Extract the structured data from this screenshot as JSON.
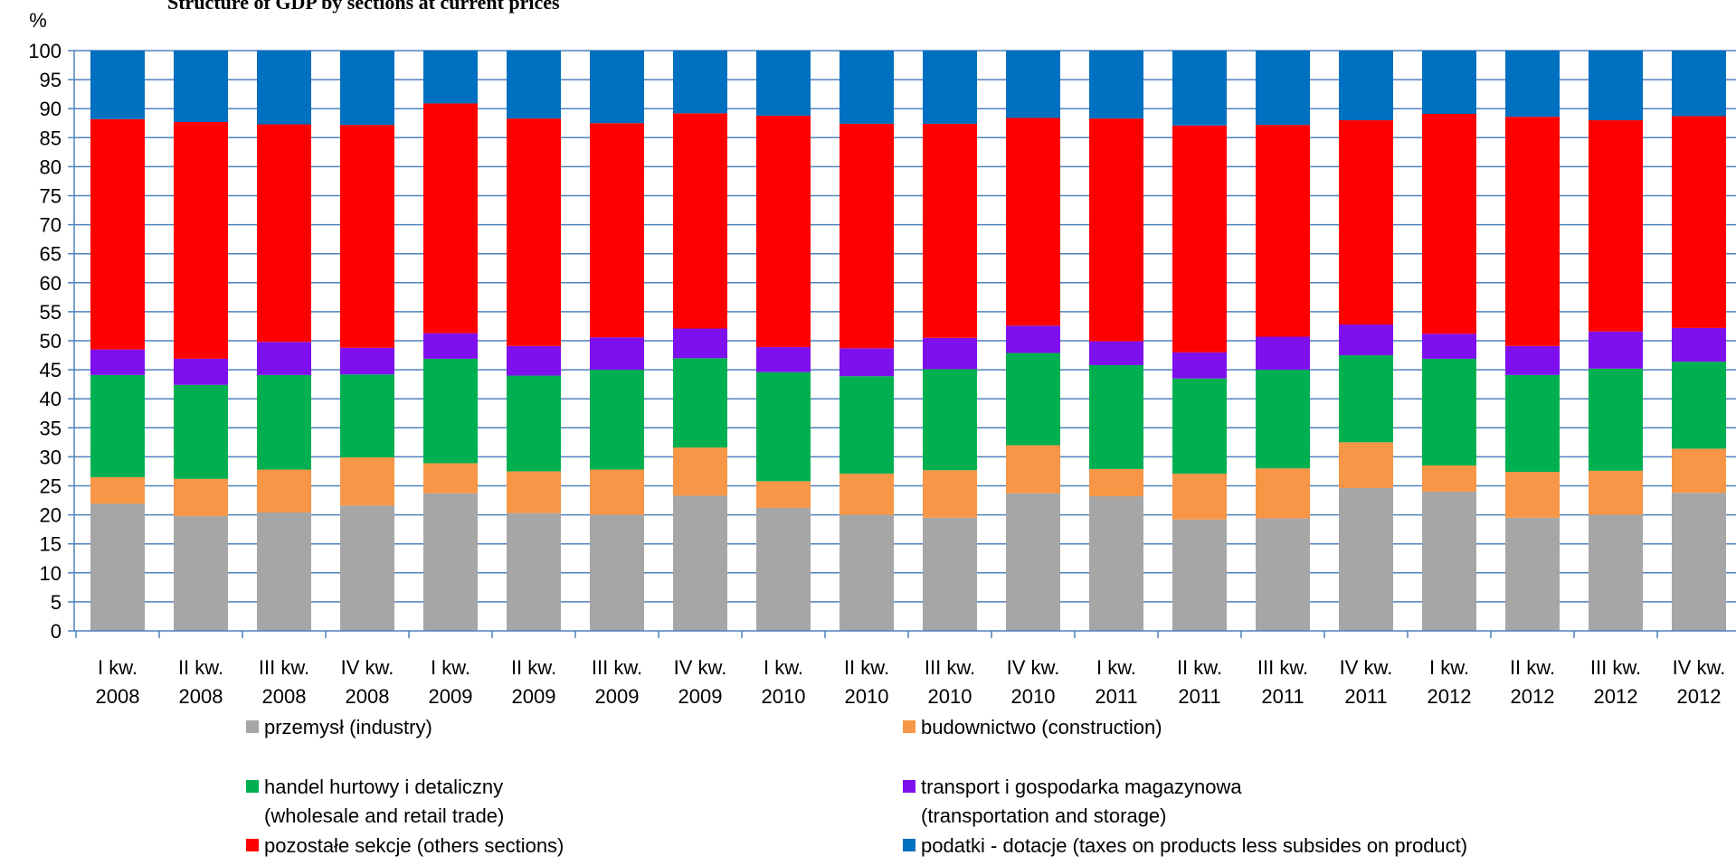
{
  "chart_data": {
    "type": "bar",
    "stacked": true,
    "title": "Structure of GDP by sections at current prices",
    "ylabel": "%",
    "xlabel": "",
    "ylim": [
      0,
      100
    ],
    "yticks": [
      0,
      5,
      10,
      15,
      20,
      25,
      30,
      35,
      40,
      45,
      50,
      55,
      60,
      65,
      70,
      75,
      80,
      85,
      90,
      95,
      100
    ],
    "grid": true,
    "legend_position": "bottom",
    "categories": [
      [
        "I kw.",
        "2008"
      ],
      [
        "II kw.",
        "2008"
      ],
      [
        "III kw.",
        "2008"
      ],
      [
        "IV kw.",
        "2008"
      ],
      [
        "I kw.",
        "2009"
      ],
      [
        "II kw.",
        "2009"
      ],
      [
        "III kw.",
        "2009"
      ],
      [
        "IV kw.",
        "2009"
      ],
      [
        "I kw.",
        "2010"
      ],
      [
        "II kw.",
        "2010"
      ],
      [
        "III kw.",
        "2010"
      ],
      [
        "IV kw.",
        "2010"
      ],
      [
        "I kw.",
        "2011"
      ],
      [
        "II kw.",
        "2011"
      ],
      [
        "III kw.",
        "2011"
      ],
      [
        "IV kw.",
        "2011"
      ],
      [
        "I kw.",
        "2012"
      ],
      [
        "II kw.",
        "2012"
      ],
      [
        "III kw.",
        "2012"
      ],
      [
        "IV kw.",
        "2012"
      ]
    ],
    "series": [
      {
        "name": "przemysł (industry)",
        "legend_lines": [
          "przemysł (industry)"
        ],
        "color": "#a6a6a6",
        "values": [
          21.9,
          19.8,
          20.4,
          21.6,
          23.7,
          20.3,
          20.0,
          23.3,
          21.2,
          20.0,
          19.5,
          23.7,
          23.2,
          19.2,
          19.4,
          24.6,
          24.0,
          19.5,
          20.0,
          23.8
        ]
      },
      {
        "name": "budownictwo (construction)",
        "legend_lines": [
          "budownictwo (construction)"
        ],
        "color": "#f79646",
        "values": [
          4.6,
          6.4,
          7.4,
          8.3,
          5.2,
          7.2,
          7.8,
          8.3,
          4.6,
          7.1,
          8.2,
          8.3,
          4.7,
          7.9,
          8.6,
          7.9,
          4.5,
          7.9,
          7.6,
          7.6
        ]
      },
      {
        "name": "handel hurtowy i detaliczny (wholesale and retail trade)",
        "legend_lines": [
          "handel hurtowy i detaliczny",
          "(wholesale and retail trade)"
        ],
        "color": "#00b050",
        "values": [
          17.6,
          16.2,
          16.3,
          14.3,
          18.0,
          16.5,
          17.2,
          15.4,
          18.8,
          16.8,
          17.4,
          15.9,
          17.9,
          16.4,
          17.0,
          15.0,
          18.4,
          16.7,
          17.6,
          15.0
        ]
      },
      {
        "name": "transport i gospodarka magazynowa (transportation and storage)",
        "legend_lines": [
          "transport i gospodarka magazynowa",
          "(transportation and storage)"
        ],
        "color": "#7f10ee",
        "values": [
          4.4,
          4.5,
          5.7,
          4.6,
          4.4,
          5.1,
          5.6,
          5.1,
          4.3,
          4.8,
          5.4,
          4.7,
          4.1,
          4.5,
          5.7,
          5.3,
          4.3,
          5.0,
          6.4,
          5.8
        ]
      },
      {
        "name": "pozostałe sekcje (others sections)",
        "legend_lines": [
          "pozostałe sekcje (others sections)"
        ],
        "color": "#ff0000",
        "values": [
          39.7,
          40.8,
          37.5,
          38.4,
          39.6,
          39.2,
          36.9,
          37.1,
          39.9,
          38.7,
          36.9,
          35.8,
          38.4,
          39.1,
          36.5,
          35.2,
          37.9,
          39.5,
          36.4,
          36.5
        ]
      },
      {
        "name": "podatki - dotacje (taxes on products less subsides on product)",
        "legend_lines": [
          "podatki - dotacje (taxes on products less subsides on product)"
        ],
        "color": "#0070c0",
        "values": [
          11.8,
          12.3,
          12.7,
          12.8,
          9.1,
          11.7,
          12.5,
          10.8,
          11.2,
          12.6,
          12.6,
          11.6,
          11.7,
          12.9,
          12.8,
          12.0,
          10.9,
          11.4,
          12.0,
          11.3
        ]
      }
    ]
  }
}
